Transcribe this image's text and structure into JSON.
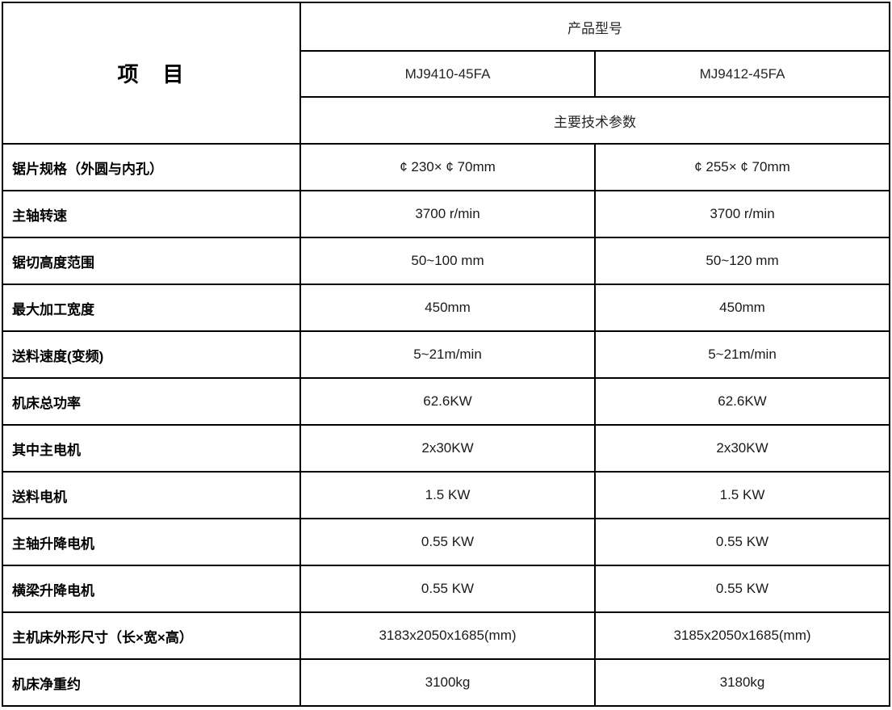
{
  "table": {
    "items_header": "项　目",
    "product_model_header": "产品型号",
    "models": [
      "MJ9410-45FA",
      "MJ9412-45FA"
    ],
    "params_header": "主要技术参数",
    "rows": [
      {
        "label": "锯片规格（外圆与内孔）",
        "values": [
          "¢ 230× ¢ 70mm",
          "¢ 255× ¢ 70mm"
        ]
      },
      {
        "label": "主轴转速",
        "values": [
          "3700 r/min",
          "3700 r/min"
        ]
      },
      {
        "label": "锯切高度范围",
        "values": [
          "50~100 mm",
          "50~120 mm"
        ]
      },
      {
        "label": "最大加工宽度",
        "values": [
          "450mm",
          "450mm"
        ]
      },
      {
        "label": "送料速度(变频)",
        "values": [
          "5~21m/min",
          "5~21m/min"
        ]
      },
      {
        "label": "机床总功率",
        "values": [
          "62.6KW",
          "62.6KW"
        ]
      },
      {
        "label": "其中主电机",
        "values": [
          "2x30KW",
          "2x30KW"
        ]
      },
      {
        "label": "送料电机",
        "values": [
          "1.5 KW",
          "1.5 KW"
        ]
      },
      {
        "label": "主轴升降电机",
        "values": [
          "0.55 KW",
          "0.55 KW"
        ]
      },
      {
        "label": "横梁升降电机",
        "values": [
          "0.55 KW",
          "0.55 KW"
        ]
      },
      {
        "label": "主机床外形尺寸（长×宽×高）",
        "values": [
          "3183x2050x1685(mm)",
          "3185x2050x1685(mm)"
        ]
      },
      {
        "label": "机床净重约",
        "values": [
          "3100kg",
          "3180kg"
        ]
      }
    ],
    "colors": {
      "border": "#000000",
      "label_text": "#000000",
      "value_text": "#1a1a1a",
      "background": "#ffffff"
    }
  }
}
